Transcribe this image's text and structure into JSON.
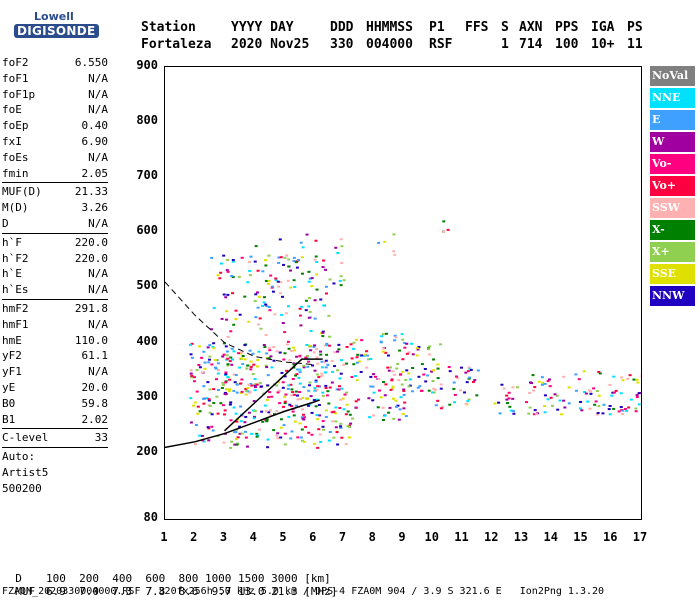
{
  "logo": {
    "line1": "Lowell",
    "line2": "DIGISONDE"
  },
  "header": {
    "labels": [
      "Station",
      "YYYY DAY",
      "DDD",
      "HHMMSS",
      "P1",
      "FFS",
      "S",
      "AXN",
      "PPS",
      "IGA",
      "PS"
    ],
    "values": [
      "Fortaleza",
      "2020 Nov25",
      "330",
      "004000",
      "RSF",
      "1",
      "714",
      "100",
      "10+",
      "11"
    ]
  },
  "params": [
    {
      "name": "foF2",
      "value": "6.550"
    },
    {
      "name": "foF1",
      "value": "N/A"
    },
    {
      "name": "foF1p",
      "value": "N/A"
    },
    {
      "name": "foE",
      "value": "N/A"
    },
    {
      "name": "foEp",
      "value": "0.40"
    },
    {
      "name": "fxI",
      "value": "6.90"
    },
    {
      "name": "foEs",
      "value": "N/A"
    },
    {
      "name": "fmin",
      "value": "2.05"
    },
    {
      "sep": true
    },
    {
      "name": "MUF(D)",
      "value": "21.33"
    },
    {
      "name": "M(D)",
      "value": "3.26"
    },
    {
      "name": "D",
      "value": "N/A"
    },
    {
      "sep": true
    },
    {
      "name": "h`F",
      "value": "220.0"
    },
    {
      "name": "h`F2",
      "value": "220.0"
    },
    {
      "name": "h`E",
      "value": "N/A"
    },
    {
      "name": "h`Es",
      "value": "N/A"
    },
    {
      "sep": true
    },
    {
      "name": "hmF2",
      "value": "291.8"
    },
    {
      "name": "hmF1",
      "value": "N/A"
    },
    {
      "name": "hmE",
      "value": "110.0"
    },
    {
      "name": "yF2",
      "value": "61.1"
    },
    {
      "name": "yF1",
      "value": "N/A"
    },
    {
      "name": "yE",
      "value": "20.0"
    },
    {
      "name": "B0",
      "value": "59.8"
    },
    {
      "name": "B1",
      "value": "2.02"
    },
    {
      "sep": true
    },
    {
      "name": "C-level",
      "value": "33"
    },
    {
      "sep": true
    },
    {
      "text": "Auto:"
    },
    {
      "text": "Artist5"
    },
    {
      "text": "500200"
    }
  ],
  "legend": [
    {
      "label": "NoVal",
      "color": "#808080"
    },
    {
      "label": "NNE",
      "color": "#00e0ff"
    },
    {
      "label": "E",
      "color": "#40a0ff"
    },
    {
      "label": "W",
      "color": "#a000a0"
    },
    {
      "label": "Vo-",
      "color": "#ff0080"
    },
    {
      "label": "Vo+",
      "color": "#ff0040"
    },
    {
      "label": "SSW",
      "color": "#ffb0b0"
    },
    {
      "label": "X-",
      "color": "#008000"
    },
    {
      "label": "X+",
      "color": "#90d050"
    },
    {
      "label": "SSE",
      "color": "#e0e000"
    },
    {
      "label": "NNW",
      "color": "#2000c0"
    }
  ],
  "chart_data": {
    "type": "scatter",
    "xlim": [
      1,
      17
    ],
    "ylim": [
      80,
      900
    ],
    "x_ticks": [
      1,
      2,
      3,
      4,
      5,
      6,
      7,
      8,
      9,
      10,
      11,
      12,
      13,
      14,
      15,
      16,
      17
    ],
    "y_ticks": [
      80,
      200,
      300,
      400,
      500,
      600,
      700,
      800,
      900
    ],
    "clusters": [
      {
        "x": [
          1.8,
          7.2
        ],
        "y": [
          210,
          400
        ],
        "weight": 0.9
      },
      {
        "x": [
          2.5,
          6.5
        ],
        "y": [
          300,
          560
        ],
        "weight": 0.5
      },
      {
        "x": [
          7.2,
          9.2
        ],
        "y": [
          260,
          420
        ],
        "weight": 0.8
      },
      {
        "x": [
          9.0,
          10.3
        ],
        "y": [
          310,
          400
        ],
        "weight": 0.9
      },
      {
        "x": [
          10.0,
          11.5
        ],
        "y": [
          280,
          360
        ],
        "weight": 0.7
      },
      {
        "x": [
          12.0,
          17.0
        ],
        "y": [
          270,
          350
        ],
        "weight": 0.7
      },
      {
        "x": [
          4.0,
          7.0
        ],
        "y": [
          500,
          600
        ],
        "weight": 0.3
      },
      {
        "x": [
          8.0,
          9.0
        ],
        "y": [
          560,
          600
        ],
        "weight": 0.3
      },
      {
        "x": [
          10.0,
          10.5
        ],
        "y": [
          590,
          630
        ],
        "weight": 0.5
      }
    ],
    "profile_dashed": [
      [
        1.0,
        510
      ],
      [
        2.0,
        450
      ],
      [
        3.0,
        400
      ],
      [
        4.0,
        375
      ],
      [
        5.0,
        365
      ],
      [
        6.0,
        360
      ]
    ],
    "profile_solid_lower": [
      [
        1.0,
        210
      ],
      [
        2.0,
        220
      ],
      [
        3.0,
        235
      ],
      [
        4.0,
        255
      ],
      [
        5.0,
        275
      ],
      [
        6.0,
        292
      ],
      [
        6.2,
        296
      ]
    ],
    "profile_solid_upper": [
      [
        3.0,
        240
      ],
      [
        4.0,
        290
      ],
      [
        5.0,
        340
      ],
      [
        5.6,
        370
      ],
      [
        6.3,
        370
      ]
    ]
  },
  "footer": {
    "d_label": "D",
    "d_values": "100  200  400  600  800 1000 1500 3000 [km]",
    "muf_label": "MUF",
    "muf_values": "6.9  7.0  7.3  7.8  8.6  9.7 13.0 21.3 [MHz]",
    "info": "FZA0M_2020330004000.RSF / 320fx256h 50 kHz 5.0 km / DPS-4 FZA0M 904 / 3.9 S 321.6 E   Ion2Png 1.3.20"
  }
}
